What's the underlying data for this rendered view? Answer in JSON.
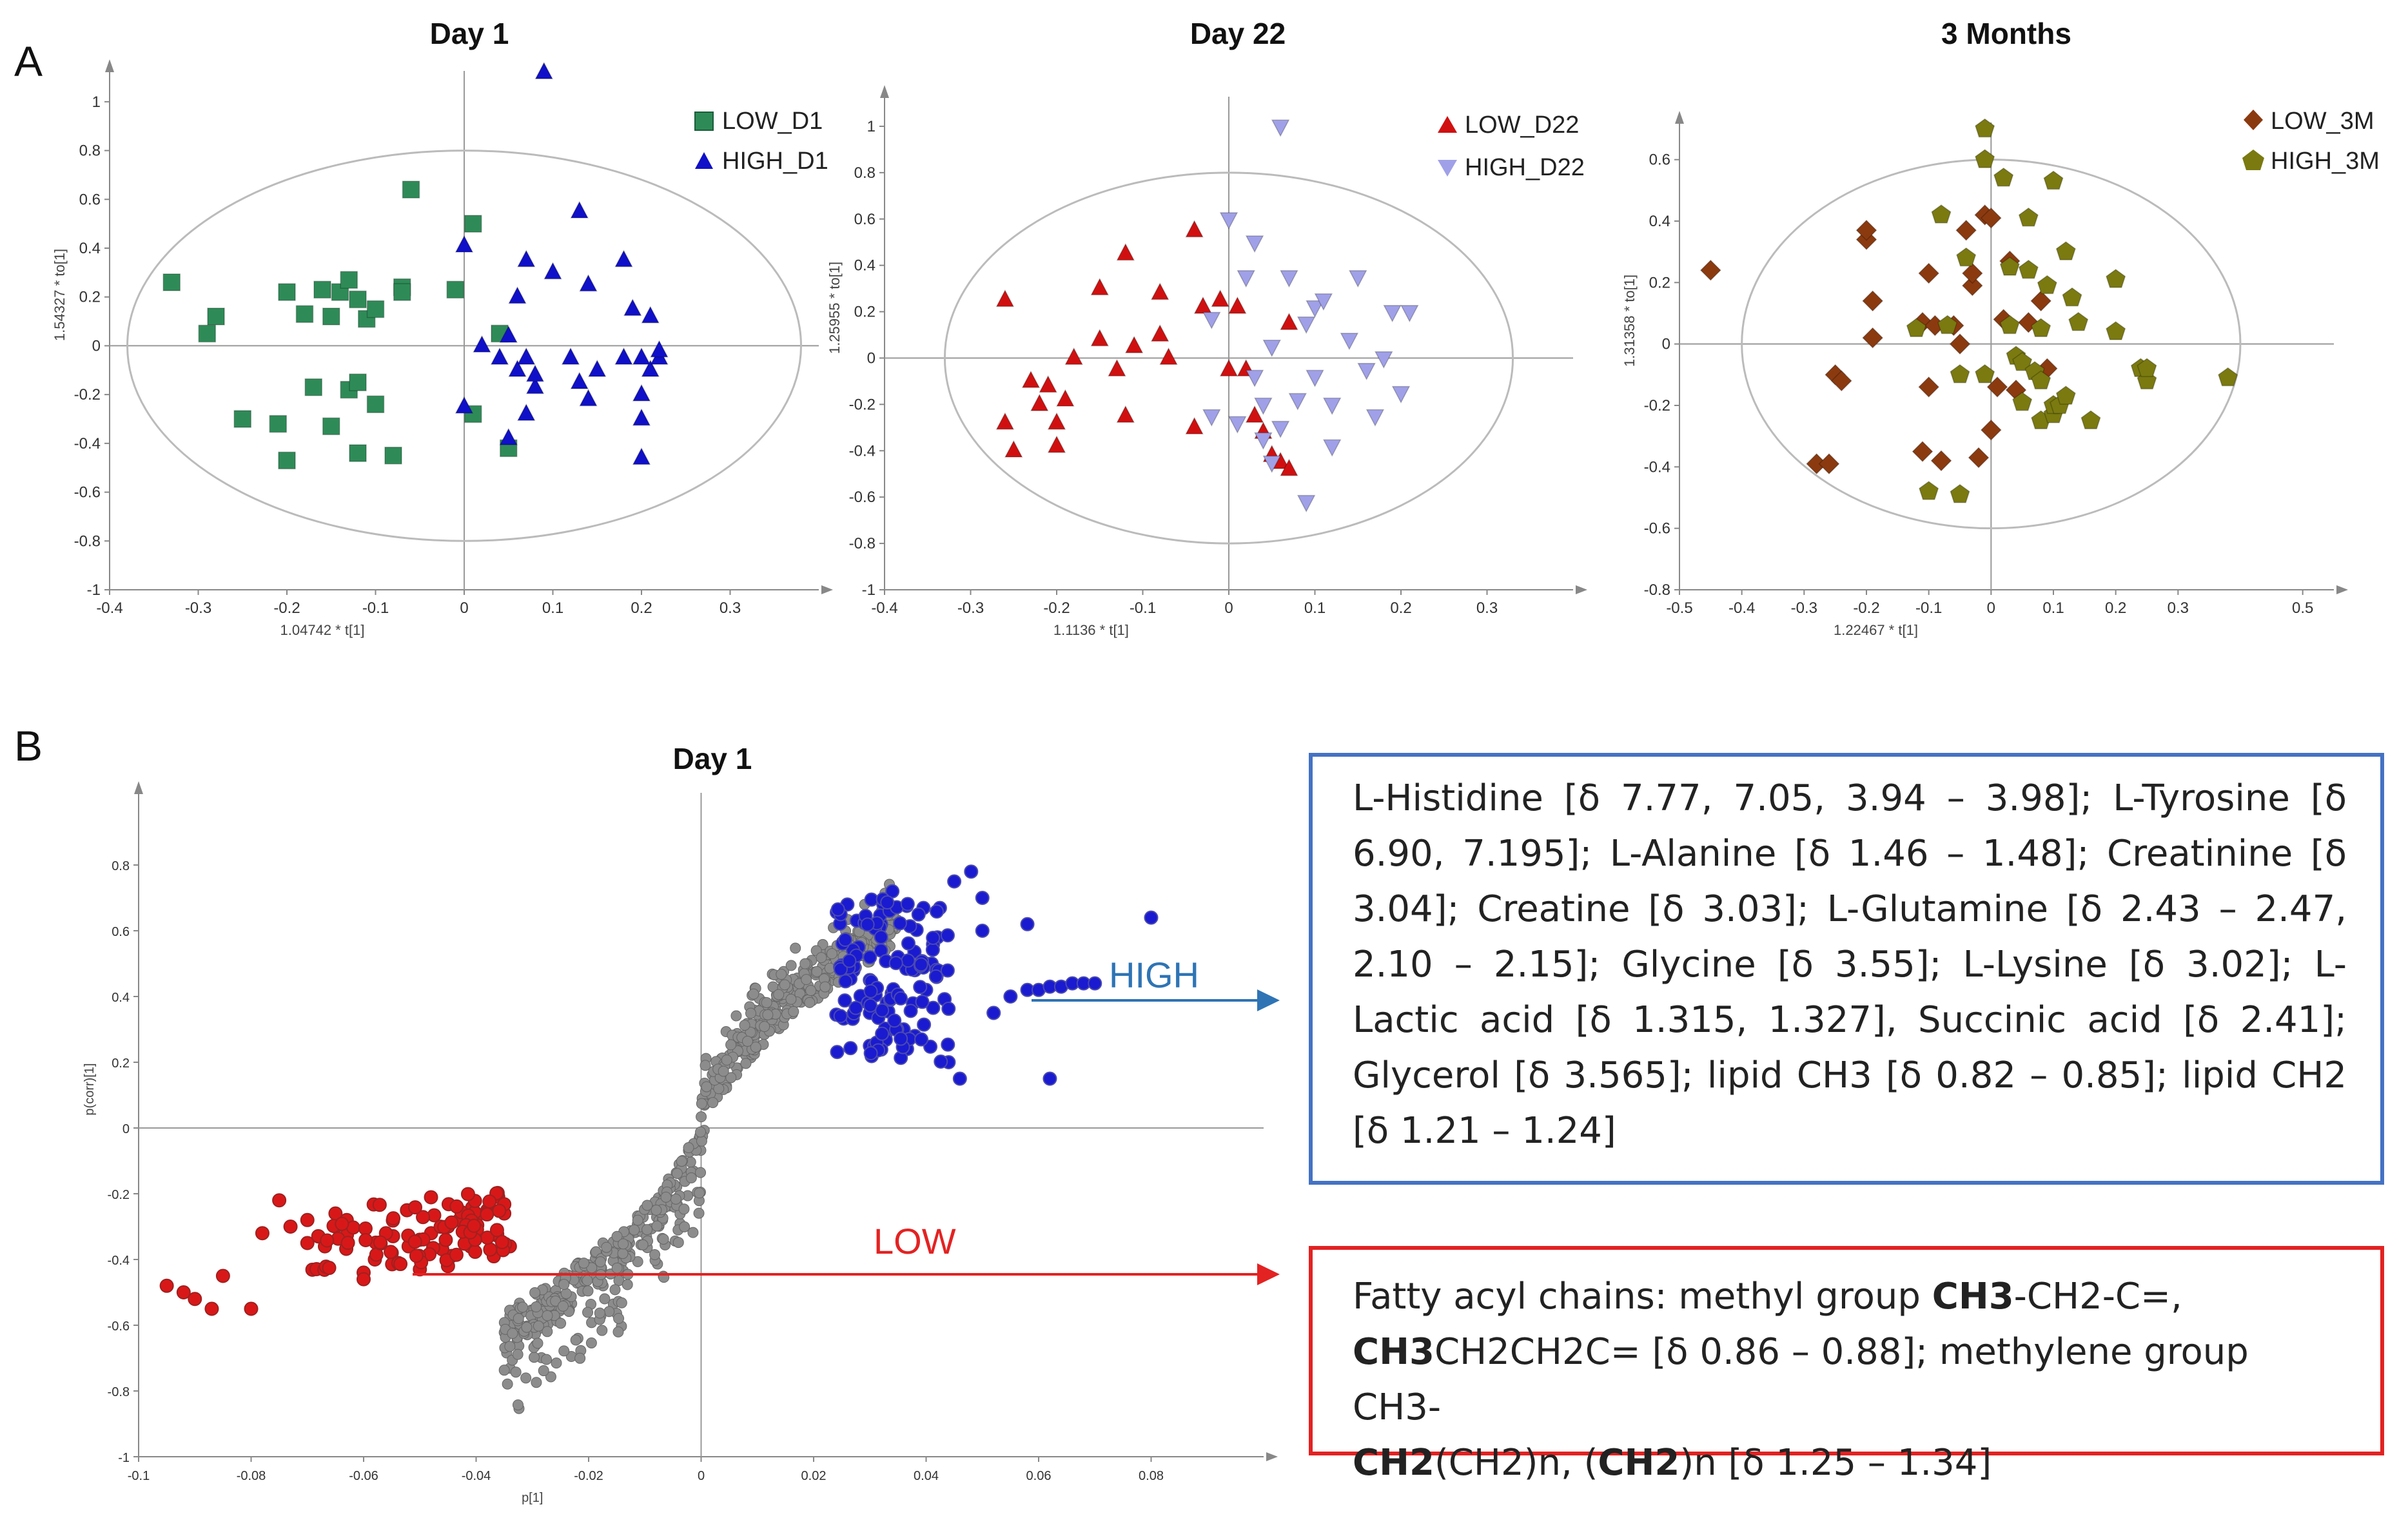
{
  "panel_labels": {
    "a": "A",
    "b": "B"
  },
  "colors": {
    "low_d1": "#2e8b57",
    "high_d1": "#1010c8",
    "low_d22": "#d01010",
    "high_d22": "#a0a0e8",
    "low_3m": "#8b3a0f",
    "high_3m": "#7a7a10",
    "loading_high": "#1a1ad0",
    "loading_low": "#d81818",
    "loading_mid": "#8c8c8c",
    "box_high": "#4472c4",
    "box_low": "#e32222",
    "label_high": "#2e74b5",
    "label_low": "#e32222"
  },
  "chart_data": [
    {
      "type": "scatter",
      "title": "Day 1",
      "xlabel": "1.04742 * t[1]",
      "ylabel": "1.54327 * to[1]",
      "xlim": [
        -0.4,
        0.4
      ],
      "ylim": [
        -1,
        1.1
      ],
      "xticks": [
        -0.4,
        -0.3,
        -0.2,
        -0.1,
        0,
        0.1,
        0.2,
        0.3
      ],
      "yticks": [
        -1,
        -0.8,
        -0.6,
        -0.4,
        -0.2,
        0,
        0.2,
        0.4,
        0.6,
        0.8,
        1
      ],
      "ellipse": {
        "rx": 0.38,
        "ry": 0.8
      },
      "series": [
        {
          "name": "LOW_D1",
          "marker": "square",
          "x": [
            -0.33,
            -0.29,
            -0.28,
            -0.25,
            -0.21,
            -0.2,
            -0.2,
            -0.18,
            -0.17,
            -0.16,
            -0.15,
            -0.15,
            -0.14,
            -0.13,
            -0.13,
            -0.12,
            -0.12,
            -0.12,
            -0.11,
            -0.1,
            -0.1,
            -0.08,
            -0.07,
            -0.07,
            -0.06,
            -0.01,
            0.01,
            0.01,
            0.04,
            0.05
          ],
          "y": [
            0.26,
            0.05,
            0.12,
            -0.3,
            -0.32,
            -0.47,
            0.22,
            0.13,
            -0.17,
            0.23,
            0.12,
            -0.33,
            0.22,
            -0.18,
            0.27,
            -0.15,
            0.19,
            -0.44,
            0.11,
            0.15,
            -0.24,
            -0.45,
            0.24,
            0.22,
            0.64,
            0.23,
            0.5,
            -0.28,
            0.05,
            -0.42
          ]
        },
        {
          "name": "HIGH_D1",
          "marker": "triangle-up",
          "x": [
            0.0,
            0.0,
            0.02,
            0.04,
            0.05,
            0.05,
            0.06,
            0.06,
            0.07,
            0.07,
            0.07,
            0.08,
            0.08,
            0.09,
            0.1,
            0.12,
            0.13,
            0.13,
            0.14,
            0.14,
            0.15,
            0.18,
            0.18,
            0.19,
            0.2,
            0.2,
            0.2,
            0.2,
            0.21,
            0.21,
            0.22,
            0.22
          ],
          "y": [
            0.41,
            -0.25,
            0.0,
            -0.05,
            0.04,
            -0.38,
            0.2,
            -0.1,
            0.35,
            -0.28,
            -0.05,
            -0.17,
            -0.12,
            1.12,
            0.3,
            -0.05,
            -0.15,
            0.55,
            0.25,
            -0.22,
            -0.1,
            0.35,
            -0.05,
            0.15,
            -0.3,
            -0.2,
            -0.46,
            -0.05,
            0.12,
            -0.1,
            -0.05,
            -0.02
          ]
        }
      ]
    },
    {
      "type": "scatter",
      "title": "Day 22",
      "xlabel": "1.1136 * t[1]",
      "ylabel": "1.25955 * to[1]",
      "xlim": [
        -0.4,
        0.4
      ],
      "ylim": [
        -1,
        1.1
      ],
      "xticks": [
        -0.4,
        -0.3,
        -0.2,
        -0.1,
        0,
        0.1,
        0.2,
        0.3
      ],
      "yticks": [
        -1,
        -0.8,
        -0.6,
        -0.4,
        -0.2,
        0,
        0.2,
        0.4,
        0.6,
        0.8,
        1
      ],
      "ellipse": {
        "rx": 0.33,
        "ry": 0.8
      },
      "series": [
        {
          "name": "LOW_D22",
          "marker": "triangle-up",
          "x": [
            -0.26,
            -0.26,
            -0.25,
            -0.23,
            -0.22,
            -0.21,
            -0.2,
            -0.2,
            -0.19,
            -0.18,
            -0.15,
            -0.15,
            -0.13,
            -0.12,
            -0.12,
            -0.11,
            -0.08,
            -0.08,
            -0.07,
            -0.04,
            -0.04,
            -0.03,
            -0.01,
            0.0,
            0.01,
            0.02,
            0.03,
            0.04,
            0.05,
            0.06,
            0.07,
            0.07
          ],
          "y": [
            0.25,
            -0.28,
            -0.4,
            -0.1,
            -0.2,
            -0.12,
            -0.38,
            -0.28,
            -0.18,
            0.0,
            0.3,
            0.08,
            -0.05,
            0.45,
            -0.25,
            0.05,
            0.1,
            0.28,
            0.0,
            0.55,
            -0.3,
            0.22,
            0.25,
            -0.05,
            0.22,
            -0.05,
            -0.25,
            -0.32,
            -0.42,
            -0.45,
            0.15,
            -0.48
          ]
        },
        {
          "name": "HIGH_D22",
          "marker": "triangle-down",
          "x": [
            -0.02,
            -0.02,
            0.0,
            0.01,
            0.02,
            0.03,
            0.03,
            0.04,
            0.04,
            0.05,
            0.05,
            0.06,
            0.06,
            0.07,
            0.08,
            0.09,
            0.09,
            0.1,
            0.1,
            0.11,
            0.12,
            0.12,
            0.14,
            0.15,
            0.16,
            0.17,
            0.18,
            0.19,
            0.2,
            0.21
          ],
          "y": [
            0.17,
            -0.25,
            0.6,
            -0.28,
            0.35,
            -0.08,
            0.5,
            -0.2,
            -0.35,
            0.05,
            -0.45,
            1.0,
            -0.3,
            0.35,
            -0.18,
            -0.62,
            0.15,
            -0.08,
            0.22,
            0.25,
            -0.2,
            -0.38,
            0.08,
            0.35,
            -0.05,
            -0.25,
            0.0,
            0.2,
            -0.15,
            0.2
          ]
        }
      ]
    },
    {
      "type": "scatter",
      "title": "3 Months",
      "xlabel": "1.22467 * t[1]",
      "ylabel": "1.31358 * to[1]",
      "xlim": [
        -0.5,
        0.55
      ],
      "ylim": [
        -0.8,
        0.7
      ],
      "xticks": [
        -0.5,
        -0.4,
        -0.3,
        -0.2,
        -0.1,
        0,
        0.1,
        0.2,
        0.3,
        0.5
      ],
      "yticks": [
        -0.8,
        -0.6,
        -0.4,
        -0.2,
        0,
        0.2,
        0.4,
        0.6
      ],
      "ellipse": {
        "rx": 0.4,
        "ry": 0.6
      },
      "series": [
        {
          "name": "LOW_3M",
          "marker": "diamond",
          "x": [
            -0.45,
            -0.28,
            -0.26,
            -0.25,
            -0.24,
            -0.2,
            -0.2,
            -0.19,
            -0.19,
            -0.11,
            -0.11,
            -0.1,
            -0.1,
            -0.09,
            -0.08,
            -0.06,
            -0.05,
            -0.04,
            -0.03,
            -0.03,
            -0.02,
            -0.01,
            0.0,
            0.0,
            0.01,
            0.02,
            0.03,
            0.04,
            0.06,
            0.08,
            0.09
          ],
          "y": [
            0.24,
            -0.39,
            -0.39,
            -0.1,
            -0.12,
            0.34,
            0.37,
            0.02,
            0.14,
            -0.35,
            0.07,
            0.23,
            -0.14,
            0.06,
            -0.38,
            0.06,
            0.0,
            0.37,
            0.19,
            0.23,
            -0.37,
            0.42,
            -0.28,
            0.41,
            -0.14,
            0.08,
            0.27,
            -0.15,
            0.07,
            0.14,
            -0.08
          ]
        },
        {
          "name": "HIGH_3M",
          "marker": "pentagon",
          "x": [
            -0.12,
            -0.1,
            -0.08,
            -0.07,
            -0.05,
            -0.05,
            -0.04,
            -0.01,
            -0.01,
            -0.01,
            0.02,
            0.03,
            0.03,
            0.04,
            0.05,
            0.05,
            0.06,
            0.06,
            0.07,
            0.08,
            0.08,
            0.08,
            0.09,
            0.1,
            0.1,
            0.1,
            0.11,
            0.12,
            0.12,
            0.13,
            0.14,
            0.16,
            0.2,
            0.2,
            0.24,
            0.25,
            0.25,
            0.38
          ],
          "y": [
            0.05,
            -0.48,
            0.42,
            0.06,
            -0.1,
            -0.49,
            0.28,
            0.7,
            -0.1,
            0.6,
            0.54,
            0.06,
            0.25,
            -0.04,
            -0.19,
            -0.06,
            0.41,
            0.24,
            -0.09,
            0.05,
            -0.25,
            -0.12,
            0.19,
            0.53,
            -0.23,
            -0.2,
            -0.2,
            -0.17,
            0.3,
            0.15,
            0.07,
            -0.25,
            0.21,
            0.04,
            -0.08,
            -0.12,
            -0.08,
            -0.11
          ]
        }
      ]
    },
    {
      "type": "scatter",
      "title": "Day 1",
      "xlabel": "p[1]",
      "ylabel": "p(corr)[1]",
      "xlim": [
        -0.1,
        0.1
      ],
      "ylim": [
        -1,
        1
      ],
      "xticks": [
        -0.1,
        -0.08,
        -0.06,
        -0.04,
        -0.02,
        0,
        0.02,
        0.04,
        0.06,
        0.08
      ],
      "yticks": [
        -1,
        -0.8,
        -0.6,
        -0.4,
        -0.2,
        0,
        0.2,
        0.4,
        0.6,
        0.8
      ],
      "series": [
        {
          "name": "HIGH",
          "marker": "circle",
          "x": [
            0.026,
            0.028,
            0.03,
            0.032,
            0.033,
            0.035,
            0.036,
            0.038,
            0.04,
            0.042,
            0.045,
            0.048,
            0.05,
            0.052,
            0.055,
            0.058,
            0.06,
            0.062,
            0.064,
            0.066,
            0.068,
            0.07,
            0.08,
            0.03,
            0.034,
            0.038,
            0.044,
            0.046,
            0.052,
            0.062,
            0.05,
            0.058,
            0.03,
            0.04
          ],
          "y": [
            0.68,
            0.55,
            0.45,
            0.62,
            0.38,
            0.52,
            0.3,
            0.48,
            0.42,
            0.58,
            0.75,
            0.78,
            0.7,
            0.35,
            0.4,
            0.42,
            0.42,
            0.43,
            0.43,
            0.44,
            0.44,
            0.44,
            0.64,
            0.25,
            0.72,
            0.28,
            0.2,
            0.15,
            0.35,
            0.15,
            0.6,
            0.62,
            0.35,
            0.5
          ]
        },
        {
          "name": "LOW",
          "marker": "circle",
          "x": [
            -0.095,
            -0.092,
            -0.09,
            -0.087,
            -0.085,
            -0.08,
            -0.078,
            -0.075,
            -0.073,
            -0.07,
            -0.068,
            -0.065,
            -0.063,
            -0.06,
            -0.058,
            -0.055,
            -0.052,
            -0.05,
            -0.048,
            -0.045,
            -0.043,
            -0.04,
            -0.038,
            -0.035,
            -0.034,
            -0.06,
            -0.065,
            -0.07,
            -0.05,
            -0.045
          ],
          "y": [
            -0.48,
            -0.5,
            -0.52,
            -0.55,
            -0.45,
            -0.55,
            -0.32,
            -0.22,
            -0.3,
            -0.35,
            -0.33,
            -0.3,
            -0.28,
            -0.44,
            -0.4,
            -0.38,
            -0.36,
            -0.34,
            -0.32,
            -0.3,
            -0.28,
            -0.27,
            -0.25,
            -0.26,
            -0.36,
            -0.46,
            -0.26,
            -0.28,
            -0.43,
            -0.42
          ]
        }
      ]
    }
  ],
  "annotations": {
    "high_label": "HIGH",
    "low_label": "LOW"
  },
  "high_box_text": "L-Histidine [δ 7.77, 7.05, 3.94 – 3.98]; L-Tyrosine [δ 6.90, 7.195]; L-Alanine [δ 1.46 – 1.48]; Creatinine [δ 3.04]; Creatine [δ 3.03]; L-Glutamine [δ 2.43 – 2.47, 2.10 – 2.15]; Glycine [δ 3.55]; L-Lysine [δ 3.02]; L-Lactic acid [δ 1.315, 1.327], Succinic acid [δ 2.41]; Glycerol [δ 3.565]; lipid CH3 [δ 0.82 – 0.85]; lipid CH2 [δ 1.21 – 1.24]",
  "low_box": {
    "p1": "Fatty acyl chains: methyl group ",
    "b1": "CH3",
    "p2": "-CH2-C=,",
    "b2": "CH3",
    "p3": "CH2CH2C= [δ 0.86 – 0.88]; methylene group CH3-",
    "b3": "CH2",
    "p4": "(CH2)n, (",
    "b4": "CH2",
    "p5": ")n [δ 1.25 – 1.34]"
  }
}
